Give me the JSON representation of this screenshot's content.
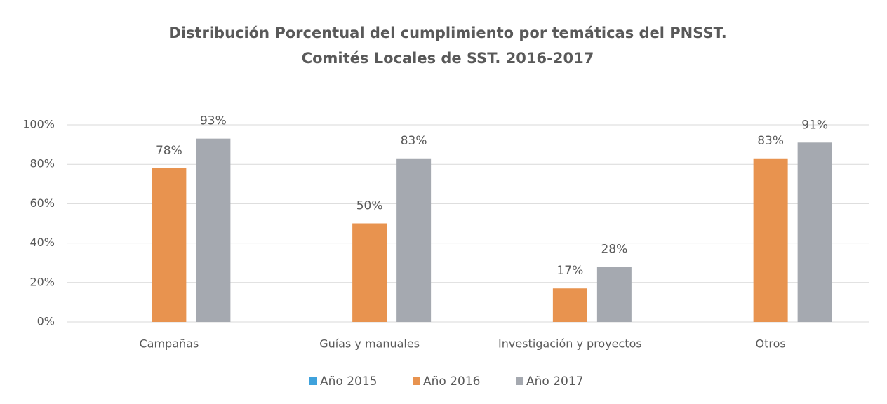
{
  "chart_data": {
    "type": "bar",
    "title": [
      "Distribución Porcentual del cumplimiento por temáticas del PNSST.",
      "Comités Locales de SST. 2016-2017"
    ],
    "categories": [
      "Campañas",
      "Guías y manuales",
      "Investigación y proyectos",
      "Otros"
    ],
    "series": [
      {
        "name": "Año 2015",
        "color": "#3fa2dc",
        "values": [
          null,
          null,
          null,
          null
        ]
      },
      {
        "name": "Año 2016",
        "color": "#e8934f",
        "values": [
          78,
          50,
          17,
          83
        ],
        "value_labels": [
          "78%",
          "50%",
          "17%",
          "83%"
        ]
      },
      {
        "name": "Año 2017",
        "color": "#a5a9b0",
        "values": [
          93,
          83,
          28,
          91
        ],
        "value_labels": [
          "93%",
          "83%",
          "28%",
          "91%"
        ]
      }
    ],
    "ylim": [
      0,
      100
    ],
    "yticks": [
      {
        "value": 0,
        "label": "0%"
      },
      {
        "value": 20,
        "label": "20%"
      },
      {
        "value": 40,
        "label": "40%"
      },
      {
        "value": 60,
        "label": "60%"
      },
      {
        "value": 80,
        "label": "80%"
      },
      {
        "value": 100,
        "label": "100%"
      }
    ],
    "grid": true,
    "legend": "bottom"
  }
}
